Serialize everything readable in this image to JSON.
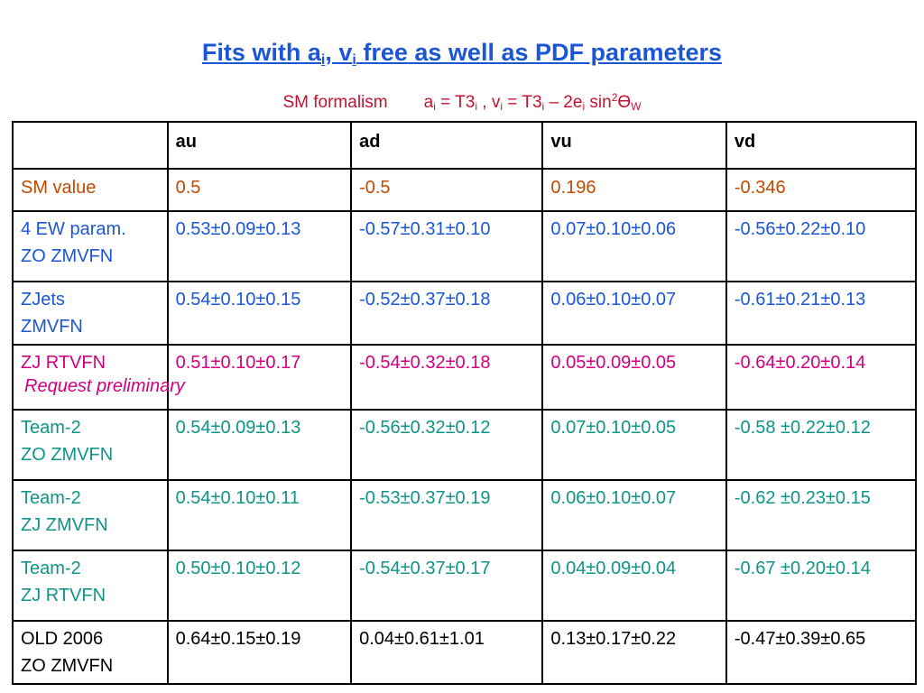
{
  "title": {
    "prefix": "Fits with a",
    "sub1": "i",
    "mid": ", v",
    "sub2": "i",
    "suffix": " free as well as PDF parameters"
  },
  "subtitle": {
    "label": "SM formalism",
    "f1": "a",
    "s1": "i",
    "f2": " = T3",
    "s2": "i",
    "f3": " , v",
    "s3": "i",
    "f4": " = T3",
    "s4": "i",
    "f5": " – 2e",
    "s5": "i",
    "f6": " sin",
    "sup": "2",
    "f7": "Ө",
    "s6": "W"
  },
  "table": {
    "headers": [
      "",
      "au",
      "ad",
      "vu",
      "vd"
    ],
    "rows": [
      {
        "label": "SM value",
        "label2": "",
        "note": "",
        "cells": [
          "0.5",
          "-0.5",
          "0.196",
          "-0.346"
        ]
      },
      {
        "label": "4 EW param.",
        "label2": "ZO ZMVFN",
        "note": "",
        "cells": [
          "0.53±0.09±0.13",
          "-0.57±0.31±0.10",
          "0.07±0.10±0.06",
          "-0.56±0.22±0.10"
        ]
      },
      {
        "label": "ZJets",
        "label2": "ZMVFN",
        "note": "",
        "cells": [
          "0.54±0.10±0.15",
          "-0.52±0.37±0.18",
          "0.06±0.10±0.07",
          "-0.61±0.21±0.13"
        ]
      },
      {
        "label": "ZJ RTVFN",
        "label2": "",
        "note": "Request preliminary",
        "cells": [
          "0.51±0.10±0.17",
          "-0.54±0.32±0.18",
          "0.05±0.09±0.05",
          "-0.64±0.20±0.14"
        ]
      },
      {
        "label": "Team-2",
        "label2": "ZO ZMVFN",
        "note": "",
        "cells": [
          "0.54±0.09±0.13",
          "-0.56±0.32±0.12",
          "0.07±0.10±0.05",
          "-0.58 ±0.22±0.12"
        ]
      },
      {
        "label": "Team-2",
        "label2": "ZJ ZMVFN",
        "note": "",
        "cells": [
          "0.54±0.10±0.11",
          "-0.53±0.37±0.19",
          "0.06±0.10±0.07",
          "-0.62 ±0.23±0.15"
        ]
      },
      {
        "label": "Team-2",
        "label2": "ZJ RTVFN",
        "note": "",
        "cells": [
          "0.50±0.10±0.12",
          "-0.54±0.37±0.17",
          "0.04±0.09±0.04",
          "-0.67 ±0.20±0.14"
        ]
      },
      {
        "label": "OLD 2006",
        "label2": "ZO ZMVFN",
        "note": "",
        "cells": [
          "0.64±0.15±0.19",
          "0.04±0.61±1.01",
          "0.13±0.17±0.22",
          "-0.47±0.39±0.65"
        ]
      }
    ]
  },
  "colors": {
    "title": "#1a56d6",
    "subtitle": "#c8102e",
    "sm_row": "#c04a00",
    "blue_rows": "#1a56d6",
    "magenta_row": "#d0007f",
    "teal_rows": "#0f9488",
    "old_row": "#000000"
  }
}
